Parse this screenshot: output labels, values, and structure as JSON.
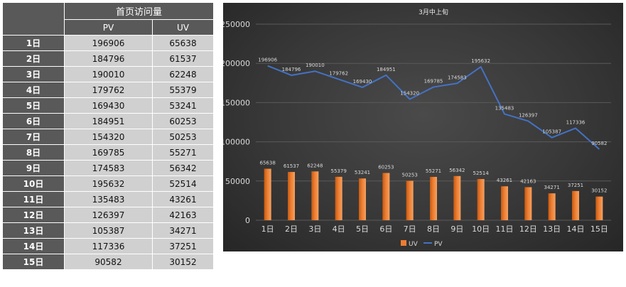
{
  "table": {
    "title": "首页访问量",
    "columns": [
      "PV",
      "UV"
    ],
    "rows": [
      {
        "day": "1日",
        "pv": "196906",
        "uv": "65638"
      },
      {
        "day": "2日",
        "pv": "184796",
        "uv": "61537"
      },
      {
        "day": "3日",
        "pv": "190010",
        "uv": "62248"
      },
      {
        "day": "4日",
        "pv": "179762",
        "uv": "55379"
      },
      {
        "day": "5日",
        "pv": "169430",
        "uv": "53241"
      },
      {
        "day": "6日",
        "pv": "184951",
        "uv": "60253"
      },
      {
        "day": "7日",
        "pv": "154320",
        "uv": "50253"
      },
      {
        "day": "8日",
        "pv": "169785",
        "uv": "55271"
      },
      {
        "day": "9日",
        "pv": "174583",
        "uv": "56342"
      },
      {
        "day": "10日",
        "pv": "195632",
        "uv": "52514"
      },
      {
        "day": "11日",
        "pv": "135483",
        "uv": "43261"
      },
      {
        "day": "12日",
        "pv": "126397",
        "uv": "42163"
      },
      {
        "day": "13日",
        "pv": "105387",
        "uv": "34271"
      },
      {
        "day": "14日",
        "pv": "117336",
        "uv": "37251"
      },
      {
        "day": "15日",
        "pv": "90582",
        "uv": "30152"
      }
    ]
  },
  "chart_data": {
    "type": "bar",
    "title": "3月中上旬",
    "categories": [
      "1日",
      "2日",
      "3日",
      "4日",
      "5日",
      "6日",
      "7日",
      "8日",
      "9日",
      "10日",
      "11日",
      "12日",
      "13日",
      "14日",
      "15日"
    ],
    "series": [
      {
        "name": "UV",
        "type": "bar",
        "values": [
          65638,
          61537,
          62248,
          55379,
          53241,
          60253,
          50253,
          55271,
          56342,
          52514,
          43261,
          42163,
          34271,
          37251,
          30152
        ]
      },
      {
        "name": "PV",
        "type": "line",
        "values": [
          196906,
          184796,
          190010,
          179762,
          169430,
          184951,
          154320,
          169785,
          174583,
          195632,
          135483,
          126397,
          105387,
          117336,
          90582
        ]
      }
    ],
    "yticks": [
      0,
      50000,
      100000,
      150000,
      200000,
      250000
    ],
    "ylim": [
      0,
      250000
    ],
    "grid": true,
    "legend": "bottom",
    "colors": {
      "UV": "#ed7d31",
      "PV": "#4472c4"
    }
  }
}
